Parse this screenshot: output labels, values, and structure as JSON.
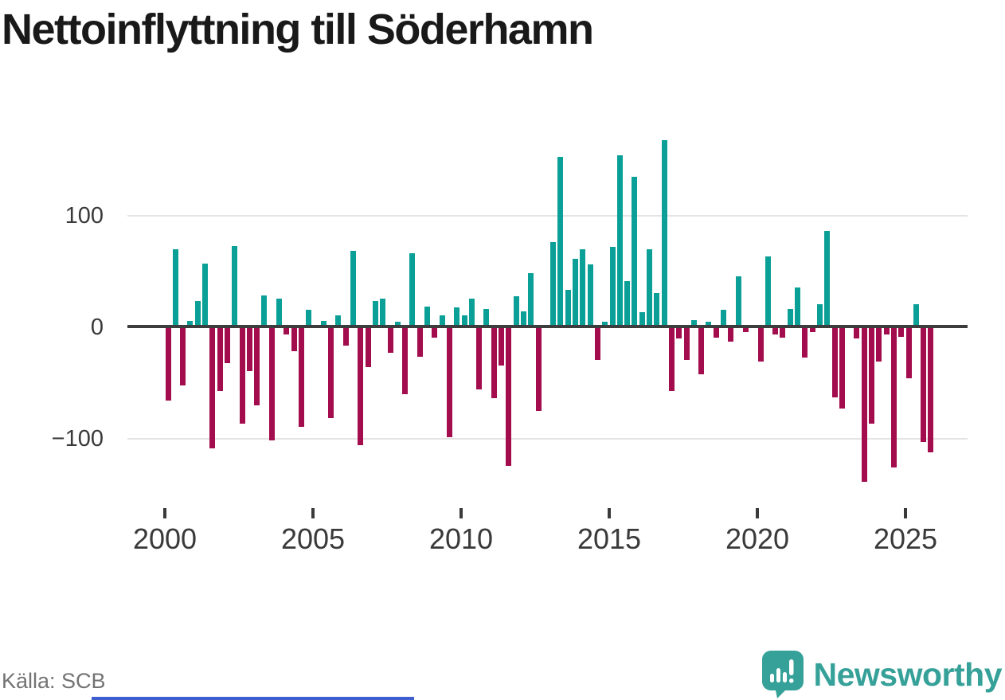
{
  "title": "Nettoinflyttning till Söderhamn",
  "source": "Källa: SCB",
  "logo": {
    "text": "Newsworthy"
  },
  "y_axis": {
    "top": "100",
    "zero": "0",
    "bottom": "−100"
  },
  "chart_data": {
    "type": "bar",
    "title": "Nettoinflyttning till Söderhamn",
    "xlabel": "",
    "ylabel": "",
    "frequency": "quarterly",
    "start_year": 2000,
    "x_tick_labels": [
      "2000",
      "2005",
      "2010",
      "2015",
      "2020",
      "2025"
    ],
    "x_tick_indices": [
      0,
      20,
      40,
      60,
      80,
      100
    ],
    "y_ticks": [
      100,
      0,
      -100
    ],
    "ylim": [
      -150,
      180
    ],
    "grid": "horizontal gridlines at 100 and -100, dark zero axis line",
    "legend": "none",
    "colors": {
      "positive": "#0ba097",
      "negative": "#a30c4d"
    },
    "categories": [
      "2000Q1",
      "2000Q2",
      "2000Q3",
      "2000Q4",
      "2001Q1",
      "2001Q2",
      "2001Q3",
      "2001Q4",
      "2002Q1",
      "2002Q2",
      "2002Q3",
      "2002Q4",
      "2003Q1",
      "2003Q2",
      "2003Q3",
      "2003Q4",
      "2004Q1",
      "2004Q2",
      "2004Q3",
      "2004Q4",
      "2005Q1",
      "2005Q2",
      "2005Q3",
      "2005Q4",
      "2006Q1",
      "2006Q2",
      "2006Q3",
      "2006Q4",
      "2007Q1",
      "2007Q2",
      "2007Q3",
      "2007Q4",
      "2008Q1",
      "2008Q2",
      "2008Q3",
      "2008Q4",
      "2009Q1",
      "2009Q2",
      "2009Q3",
      "2009Q4",
      "2010Q1",
      "2010Q2",
      "2010Q3",
      "2010Q4",
      "2011Q1",
      "2011Q2",
      "2011Q3",
      "2011Q4",
      "2012Q1",
      "2012Q2",
      "2012Q3",
      "2012Q4",
      "2013Q1",
      "2013Q2",
      "2013Q3",
      "2013Q4",
      "2014Q1",
      "2014Q2",
      "2014Q3",
      "2014Q4",
      "2015Q1",
      "2015Q2",
      "2015Q3",
      "2015Q4",
      "2016Q1",
      "2016Q2",
      "2016Q3",
      "2016Q4",
      "2017Q1",
      "2017Q2",
      "2017Q3",
      "2017Q4",
      "2018Q1",
      "2018Q2",
      "2018Q3",
      "2018Q4",
      "2019Q1",
      "2019Q2",
      "2019Q3",
      "2019Q4",
      "2020Q1",
      "2020Q2",
      "2020Q3",
      "2020Q4",
      "2021Q1",
      "2021Q2",
      "2021Q3",
      "2021Q4",
      "2022Q1",
      "2022Q2",
      "2022Q3",
      "2022Q4",
      "2023Q1",
      "2023Q2",
      "2023Q3",
      "2023Q4",
      "2024Q1",
      "2024Q2",
      "2024Q3",
      "2024Q4",
      "2025Q1",
      "2025Q2",
      "2025Q3",
      "2025Q4"
    ],
    "values": [
      -67,
      70,
      -53,
      5,
      23,
      57,
      -110,
      -58,
      -33,
      73,
      -88,
      -40,
      -71,
      28,
      -103,
      25,
      -7,
      -22,
      -91,
      15,
      0,
      5,
      -83,
      10,
      -17,
      68,
      -107,
      -37,
      23,
      25,
      -24,
      4,
      -61,
      66,
      -27,
      18,
      -10,
      10,
      -100,
      17,
      10,
      25,
      -57,
      16,
      -65,
      -35,
      -126,
      27,
      14,
      48,
      -76,
      0,
      76,
      153,
      33,
      61,
      70,
      56,
      -30,
      4,
      72,
      155,
      41,
      135,
      13,
      70,
      30,
      168,
      -58,
      -11,
      -30,
      6,
      -43,
      4,
      -10,
      15,
      -14,
      45,
      -5,
      0,
      -32,
      63,
      -7,
      -10,
      16,
      35,
      -28,
      -5,
      20,
      86,
      -64,
      -74,
      0,
      -11,
      -140,
      -88,
      -32,
      -7,
      -127,
      -9,
      -47,
      20,
      -104,
      -114
    ]
  }
}
